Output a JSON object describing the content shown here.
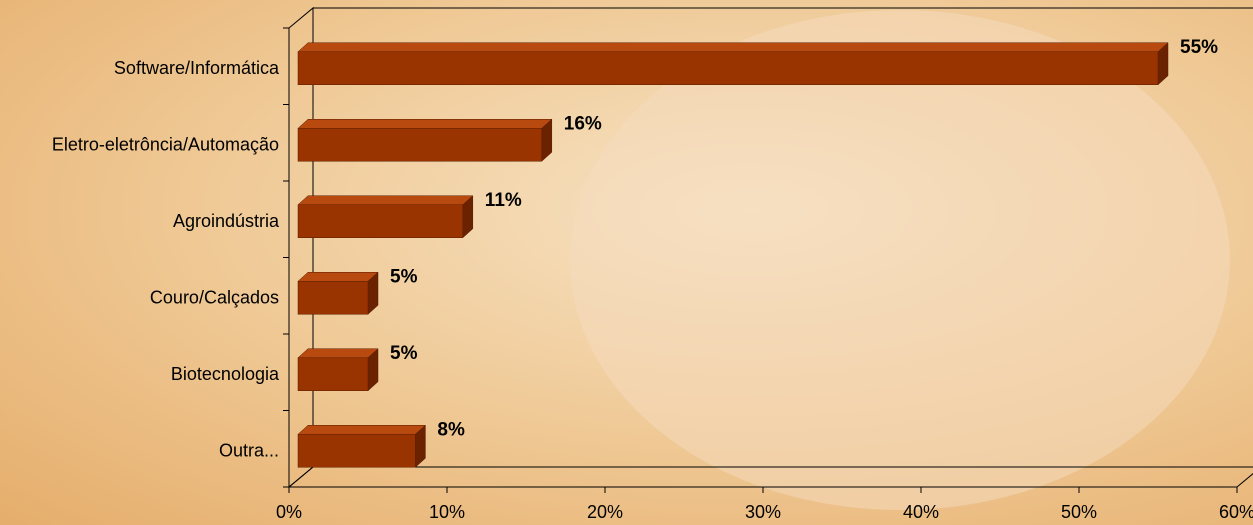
{
  "chart_data": {
    "type": "bar3d_horizontal",
    "categories": [
      "Software/Informática",
      "Eletro-eletrôncia/Automação",
      "Agroindústria",
      "Couro/Calçados",
      "Biotecnologia",
      "Outra..."
    ],
    "values": [
      55,
      16,
      11,
      5,
      5,
      8
    ],
    "value_labels": [
      "55%",
      "16%",
      "11%",
      "5%",
      "5%",
      "8%"
    ],
    "color": "#993300",
    "xlim": [
      0,
      60
    ],
    "xticks": [
      {
        "value": 0,
        "label": "0%"
      },
      {
        "value": 10,
        "label": "10%"
      },
      {
        "value": 20,
        "label": "20%"
      },
      {
        "value": 30,
        "label": "30%"
      },
      {
        "value": 40,
        "label": "40%"
      },
      {
        "value": 50,
        "label": "50%"
      },
      {
        "value": 60,
        "label": "60%"
      }
    ]
  }
}
